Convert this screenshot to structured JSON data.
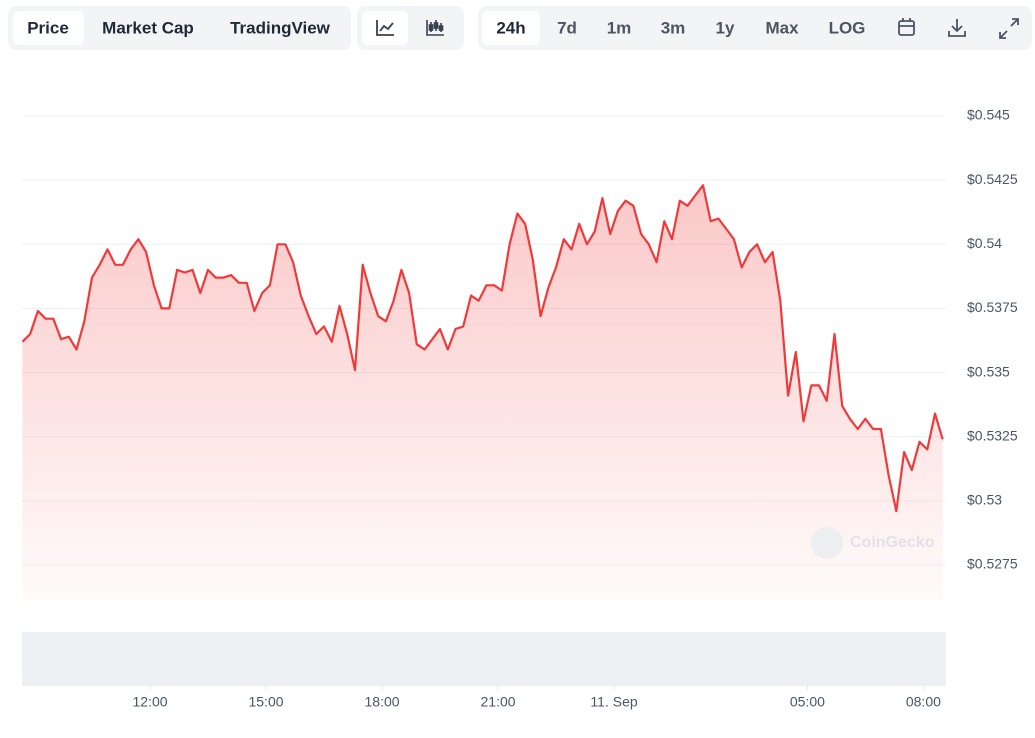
{
  "toolbar": {
    "views": [
      "Price",
      "Market Cap",
      "TradingView"
    ],
    "ranges": [
      "24h",
      "7d",
      "1m",
      "3m",
      "1y",
      "Max",
      "LOG"
    ]
  },
  "watermark": "CoinGecko",
  "chart_data": {
    "type": "area",
    "color": "#f03a3a",
    "grid": true,
    "x": [
      8.7,
      8.9,
      9.1,
      9.3,
      9.5,
      9.7,
      9.9,
      10.1,
      10.3,
      10.5,
      10.7,
      10.9,
      11.1,
      11.3,
      11.5,
      11.7,
      11.9,
      12.1,
      12.3,
      12.5,
      12.7,
      12.9,
      13.1,
      13.3,
      13.5,
      13.7,
      13.9,
      14.1,
      14.3,
      14.5,
      14.7,
      14.9,
      15.1,
      15.3,
      15.5,
      15.7,
      15.9,
      16.1,
      16.3,
      16.5,
      16.7,
      16.9,
      17.1,
      17.3,
      17.5,
      17.7,
      17.9,
      18.1,
      18.3,
      18.5,
      18.7,
      18.9,
      19.1,
      19.3,
      19.5,
      19.7,
      19.9,
      20.1,
      20.3,
      20.5,
      20.7,
      20.9,
      21.1,
      21.3,
      21.5,
      21.7,
      21.9,
      22.1,
      22.3,
      22.5,
      22.7,
      22.9,
      23.1,
      23.3,
      23.5,
      23.7,
      23.9,
      24.1,
      24.3,
      24.5,
      24.7,
      24.9,
      25.1,
      25.3,
      25.5,
      25.7,
      25.9,
      26.1,
      26.3,
      26.5,
      26.7,
      26.9,
      27.1,
      27.3,
      27.5,
      27.7,
      27.9,
      28.1,
      28.3,
      28.5,
      28.7,
      28.9,
      29.1,
      29.3,
      29.5,
      29.7,
      29.9,
      30.1,
      30.3,
      30.5,
      30.7,
      30.9,
      31.1,
      31.3,
      31.5,
      31.7,
      31.9,
      32.1,
      32.3,
      32.5
    ],
    "values": [
      0.5362,
      0.5365,
      0.5374,
      0.5371,
      0.5371,
      0.5363,
      0.5364,
      0.5359,
      0.537,
      0.5387,
      0.5392,
      0.5398,
      0.5392,
      0.5392,
      0.5398,
      0.5402,
      0.5397,
      0.5384,
      0.5375,
      0.5375,
      0.539,
      0.5389,
      0.539,
      0.5381,
      0.539,
      0.5387,
      0.5387,
      0.5388,
      0.5385,
      0.5385,
      0.5374,
      0.5381,
      0.5384,
      0.54,
      0.54,
      0.5393,
      0.538,
      0.5372,
      0.5365,
      0.5368,
      0.5362,
      0.5376,
      0.5365,
      0.5351,
      0.5392,
      0.5381,
      0.5372,
      0.537,
      0.5378,
      0.539,
      0.5381,
      0.5361,
      0.5359,
      0.5363,
      0.5367,
      0.5359,
      0.5367,
      0.5368,
      0.538,
      0.5378,
      0.5384,
      0.5384,
      0.5382,
      0.54,
      0.5412,
      0.5408,
      0.5394,
      0.5372,
      0.5383,
      0.5391,
      0.5402,
      0.5398,
      0.5408,
      0.54,
      0.5405,
      0.5418,
      0.5404,
      0.5413,
      0.5417,
      0.5415,
      0.5404,
      0.54,
      0.5393,
      0.5409,
      0.5402,
      0.5417,
      0.5415,
      0.5419,
      0.5423,
      0.5409,
      0.541,
      0.5406,
      0.5402,
      0.5391,
      0.5397,
      0.54,
      0.5393,
      0.5397,
      0.5378,
      0.5341,
      0.5358,
      0.5331,
      0.5345,
      0.5345,
      0.5339,
      0.5365,
      0.5337,
      0.5332,
      0.5328,
      0.5332,
      0.5328,
      0.5328,
      0.531,
      0.5296,
      0.5319,
      0.5312,
      0.5323,
      0.532,
      0.5334,
      0.5324
    ],
    "xlim": [
      8.7,
      32.6
    ],
    "xticks": [
      {
        "value": 12,
        "label": "12:00"
      },
      {
        "value": 15,
        "label": "15:00"
      },
      {
        "value": 18,
        "label": "18:00"
      },
      {
        "value": 21,
        "label": "21:00"
      },
      {
        "value": 24,
        "label": "11. Sep"
      },
      {
        "value": 29,
        "label": "05:00"
      },
      {
        "value": 32,
        "label": "08:00"
      }
    ],
    "ylim": [
      0.5275,
      0.545
    ],
    "yticks": [
      {
        "value": 0.545,
        "label": "$0.545"
      },
      {
        "value": 0.5425,
        "label": "$0.5425"
      },
      {
        "value": 0.54,
        "label": "$0.54"
      },
      {
        "value": 0.5375,
        "label": "$0.5375"
      },
      {
        "value": 0.535,
        "label": "$0.535"
      },
      {
        "value": 0.5325,
        "label": "$0.5325"
      },
      {
        "value": 0.53,
        "label": "$0.53"
      },
      {
        "value": 0.5275,
        "label": "$0.5275"
      }
    ]
  }
}
